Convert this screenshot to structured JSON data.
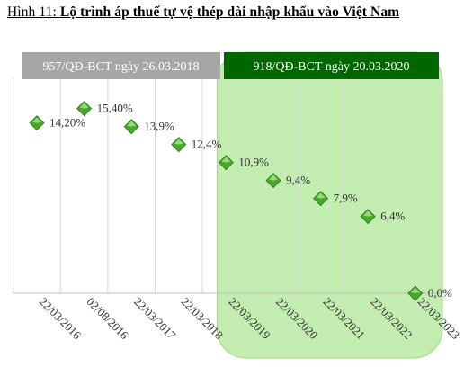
{
  "figure": {
    "number": "Hình 11:",
    "title": "Lộ trình áp thuế tự vệ thép dài nhập khẩu vào Việt Nam"
  },
  "bands": [
    {
      "label": "957/QĐ-BCT ngày 26.03.2018",
      "color": "#a6a6a6"
    },
    {
      "label": "918/QĐ-BCT ngày 20.03.2020",
      "color": "#006600"
    }
  ],
  "highlight_color": "#c6efb3",
  "marker_color": "#4aa72e",
  "chart_data": {
    "type": "scatter",
    "title": "Lộ trình áp thuế tự vệ thép dài nhập khẩu vào Việt Nam",
    "xlabel": "",
    "ylabel": "",
    "categories": [
      "22/03/2016",
      "02/08/2016",
      "22/03/2017",
      "22/03/2018",
      "22/03/2019",
      "22/03/2020",
      "22/03/2021",
      "22/03/2022",
      "22/03/2023"
    ],
    "values": [
      14.2,
      15.4,
      13.9,
      12.4,
      10.9,
      9.4,
      7.9,
      6.4,
      0.0
    ],
    "data_labels": [
      "14,20%",
      "15,40%",
      "13,9%",
      "12,4%",
      "10,9%",
      "9,4%",
      "7,9%",
      "6,4%",
      "0,0%"
    ],
    "ylim": [
      0,
      18
    ],
    "grid": true,
    "highlight_from_category": "22/03/2019"
  }
}
